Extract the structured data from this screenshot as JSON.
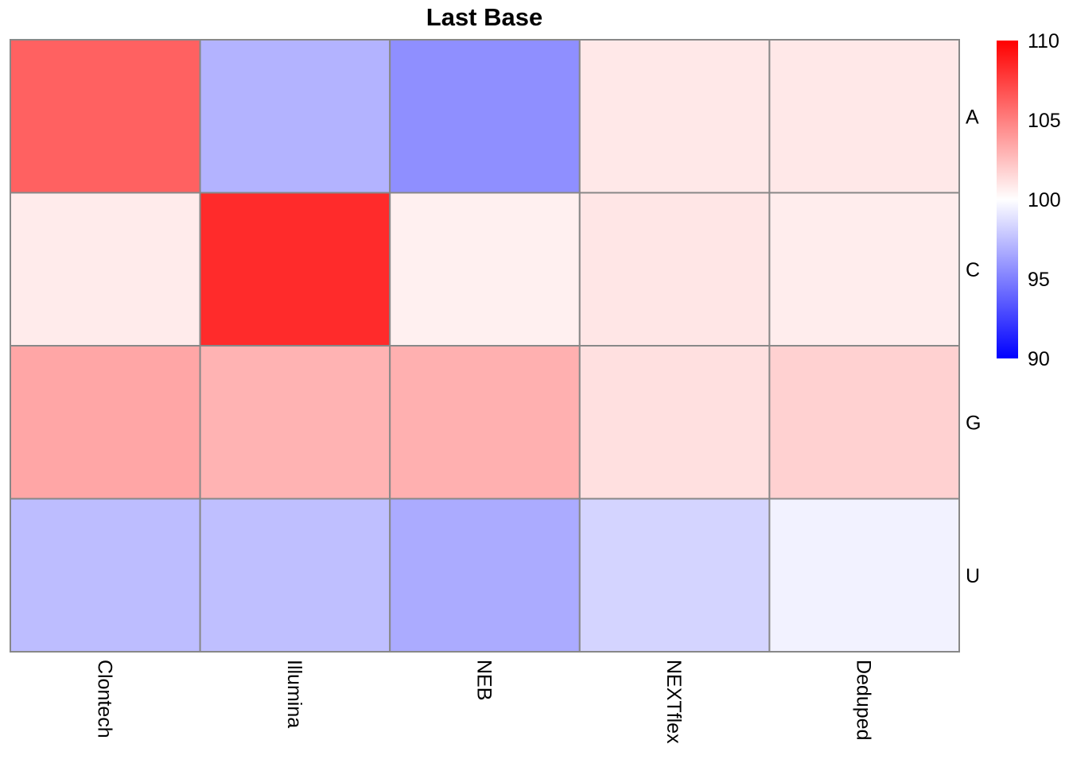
{
  "chart_data": {
    "type": "heatmap",
    "title": "Last Base",
    "columns": [
      "Clontech",
      "Illumina",
      "NEB",
      "NEXTflex",
      "Deduped"
    ],
    "rows": [
      "A",
      "C",
      "G",
      "U"
    ],
    "values": [
      [
        106.2,
        97.0,
        95.6,
        100.9,
        100.9
      ],
      [
        100.8,
        108.3,
        100.6,
        101.0,
        100.7
      ],
      [
        103.5,
        103.0,
        103.1,
        101.2,
        101.8
      ],
      [
        97.4,
        97.5,
        96.7,
        98.3,
        99.5
      ]
    ],
    "color_scale": {
      "min": 90,
      "mid": 100,
      "max": 110,
      "low_color": "#0000ff",
      "mid_color": "#ffffff",
      "high_color": "#ff0000"
    },
    "legend": {
      "position": "right",
      "ticks": [
        "110",
        "105",
        "100",
        "95",
        "90"
      ],
      "tick_values": [
        110,
        105,
        100,
        95,
        90
      ]
    },
    "cell_border_color": "#888888"
  }
}
